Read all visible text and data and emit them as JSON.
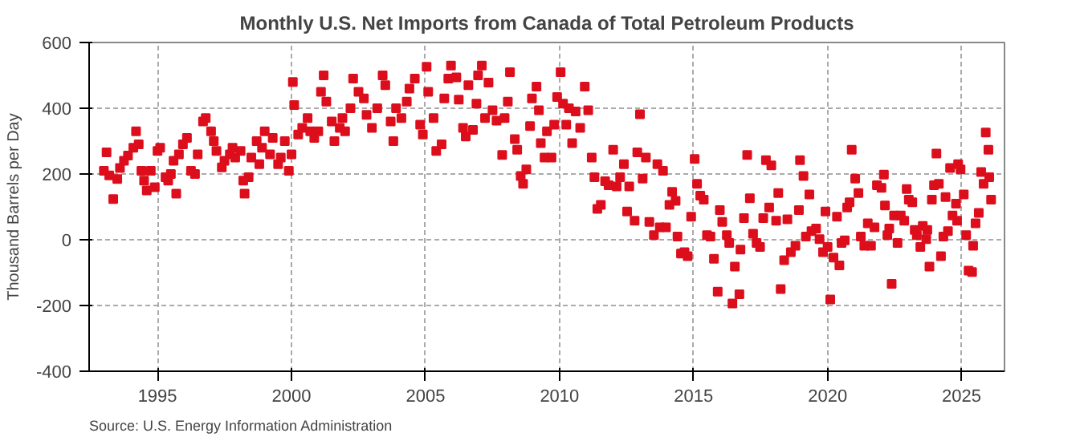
{
  "chart_data": {
    "type": "scatter",
    "title": "Monthly U.S. Net Imports from Canada of Total Petroleum Products",
    "ylabel": "Thousand Barrels per Day",
    "annotations": [
      "Source: U.S. Energy Information Administration"
    ],
    "xlim": [
      1992.45,
      2026.6
    ],
    "xticks": [
      {
        "value": 1995,
        "label": "1995"
      },
      {
        "value": 2000,
        "label": "2000"
      },
      {
        "value": 2005,
        "label": "2005"
      },
      {
        "value": 2010,
        "label": "2010"
      },
      {
        "value": 2015,
        "label": "2015"
      },
      {
        "value": 2020,
        "label": "2020"
      },
      {
        "value": 2025,
        "label": "2025"
      }
    ],
    "ylim": [
      -400,
      600
    ],
    "yticks": [
      -400,
      -200,
      0,
      200,
      400,
      600
    ],
    "grid": true,
    "marker": "square",
    "series": [
      {
        "color": "#dd0e1c",
        "x": [
          1993.0,
          1993.1,
          1993.2,
          1993.35,
          1993.5,
          1993.6,
          1993.75,
          1993.9,
          1994.1,
          1994.2,
          1994.3,
          1994.4,
          1994.5,
          1994.6,
          1994.75,
          1994.9,
          1995.0,
          1995.1,
          1995.3,
          1995.4,
          1995.5,
          1995.6,
          1995.7,
          1995.8,
          1995.95,
          1996.1,
          1996.25,
          1996.4,
          1996.5,
          1996.7,
          1996.8,
          1997.0,
          1997.1,
          1997.2,
          1997.4,
          1997.5,
          1997.7,
          1997.8,
          1997.9,
          1998.1,
          1998.2,
          1998.25,
          1998.4,
          1998.5,
          1998.7,
          1998.8,
          1998.9,
          1999.0,
          1999.2,
          1999.3,
          1999.5,
          1999.6,
          1999.75,
          1999.9,
          2000.0,
          2000.05,
          2000.1,
          2000.25,
          2000.4,
          2000.6,
          2000.7,
          2000.85,
          2001.0,
          2001.1,
          2001.2,
          2001.3,
          2001.5,
          2001.6,
          2001.8,
          2001.9,
          2002.0,
          2002.2,
          2002.3,
          2002.5,
          2002.7,
          2002.8,
          2003.0,
          2003.2,
          2003.4,
          2003.5,
          2003.7,
          2003.8,
          2003.9,
          2004.1,
          2004.3,
          2004.4,
          2004.6,
          2004.8,
          2004.9,
          2005.04,
          2005.1,
          2005.3,
          2005.4,
          2005.6,
          2005.7,
          2005.85,
          2005.95,
          2006.15,
          2006.24,
          2006.4,
          2006.5,
          2006.6,
          2006.77,
          2006.9,
          2006.96,
          2007.1,
          2007.22,
          2007.35,
          2007.5,
          2007.65,
          2007.86,
          2007.95,
          2008.07,
          2008.15,
          2008.33,
          2008.42,
          2008.55,
          2008.64,
          2008.76,
          2008.9,
          2008.97,
          2009.14,
          2009.23,
          2009.3,
          2009.44,
          2009.53,
          2009.7,
          2009.8,
          2009.91,
          2010.04,
          2010.13,
          2010.25,
          2010.35,
          2010.47,
          2010.6,
          2010.77,
          2010.94,
          2011.07,
          2011.2,
          2011.3,
          2011.41,
          2011.54,
          2011.7,
          2011.83,
          2012.0,
          2012.13,
          2012.26,
          2012.4,
          2012.52,
          2012.6,
          2012.8,
          2012.9,
          2013.0,
          2013.1,
          2013.22,
          2013.35,
          2013.52,
          2013.65,
          2013.74,
          2013.86,
          2013.97,
          2014.1,
          2014.2,
          2014.33,
          2014.4,
          2014.53,
          2014.66,
          2014.78,
          2014.91,
          2015.04,
          2015.13,
          2015.25,
          2015.38,
          2015.5,
          2015.63,
          2015.76,
          2015.9,
          2015.98,
          2016.07,
          2016.24,
          2016.33,
          2016.45,
          2016.54,
          2016.71,
          2016.75,
          2016.88,
          2017.0,
          2017.1,
          2017.22,
          2017.35,
          2017.48,
          2017.6,
          2017.7,
          2017.82,
          2017.9,
          2018.08,
          2018.16,
          2018.25,
          2018.38,
          2018.5,
          2018.63,
          2018.8,
          2018.93,
          2018.97,
          2019.1,
          2019.19,
          2019.32,
          2019.4,
          2019.57,
          2019.7,
          2019.83,
          2019.92,
          2020.0,
          2020.1,
          2020.22,
          2020.35,
          2020.44,
          2020.52,
          2020.64,
          2020.73,
          2020.82,
          2020.9,
          2021.03,
          2021.15,
          2021.24,
          2021.37,
          2021.5,
          2021.62,
          2021.75,
          2021.84,
          2022.01,
          2022.1,
          2022.14,
          2022.23,
          2022.3,
          2022.39,
          2022.48,
          2022.61,
          2022.73,
          2022.86,
          2022.95,
          2023.03,
          2023.16,
          2023.25,
          2023.33,
          2023.46,
          2023.55,
          2023.68,
          2023.72,
          2023.8,
          2023.89,
          2023.97,
          2024.06,
          2024.15,
          2024.23,
          2024.32,
          2024.4,
          2024.49,
          2024.57,
          2024.66,
          2024.79,
          2024.83,
          2024.87,
          2024.96,
          2025.08,
          2025.17,
          2025.26,
          2025.39,
          2025.43,
          2025.52,
          2025.64,
          2025.73,
          2025.82,
          2025.9,
          2026.0,
          2026.03,
          2026.1
        ],
        "values": [
          210,
          266,
          196,
          124,
          185,
          218,
          240,
          256,
          280,
          330,
          290,
          210,
          180,
          150,
          210,
          160,
          270,
          280,
          190,
          180,
          200,
          240,
          140,
          260,
          290,
          310,
          210,
          200,
          260,
          360,
          370,
          330,
          300,
          270,
          220,
          240,
          260,
          280,
          250,
          270,
          180,
          140,
          190,
          250,
          300,
          230,
          280,
          330,
          260,
          310,
          230,
          250,
          300,
          210,
          260,
          480,
          410,
          320,
          340,
          370,
          330,
          310,
          330,
          450,
          500,
          420,
          360,
          300,
          340,
          370,
          330,
          400,
          490,
          450,
          430,
          380,
          340,
          400,
          500,
          470,
          360,
          300,
          400,
          370,
          420,
          460,
          490,
          350,
          320,
          526,
          450,
          370,
          270,
          290,
          430,
          490,
          530,
          494,
          426,
          340,
          314,
          470,
          334,
          414,
          500,
          530,
          370,
          478,
          394,
          362,
          258,
          370,
          420,
          510,
          306,
          274,
          194,
          170,
          214,
          346,
          430,
          466,
          394,
          294,
          250,
          330,
          250,
          350,
          434,
          510,
          414,
          350,
          400,
          294,
          390,
          340,
          466,
          394,
          250,
          190,
          94,
          106,
          178,
          166,
          274,
          162,
          190,
          230,
          86,
          162,
          58,
          266,
          382,
          186,
          250,
          54,
          14,
          230,
          38,
          210,
          38,
          106,
          146,
          118,
          10,
          -42,
          -38,
          -50,
          70,
          246,
          170,
          134,
          122,
          14,
          10,
          -58,
          -158,
          90,
          54,
          14,
          -10,
          -194,
          -82,
          -166,
          -30,
          66,
          258,
          126,
          18,
          -10,
          -22,
          66,
          242,
          98,
          226,
          58,
          142,
          -150,
          -62,
          62,
          -38,
          -18,
          90,
          242,
          194,
          10,
          138,
          26,
          34,
          2,
          -38,
          86,
          -22,
          -182,
          -54,
          70,
          -78,
          -10,
          -2,
          98,
          114,
          274,
          186,
          142,
          10,
          -18,
          50,
          -18,
          38,
          166,
          158,
          198,
          104,
          14,
          34,
          -134,
          74,
          -10,
          74,
          58,
          154,
          122,
          114,
          30,
          14,
          -22,
          42,
          2,
          30,
          -82,
          122,
          166,
          262,
          170,
          -50,
          10,
          130,
          26,
          218,
          74,
          110,
          58,
          230,
          214,
          138,
          14,
          -94,
          -98,
          -18,
          50,
          82,
          206,
          170,
          326,
          274,
          190,
          122
        ]
      }
    ]
  }
}
